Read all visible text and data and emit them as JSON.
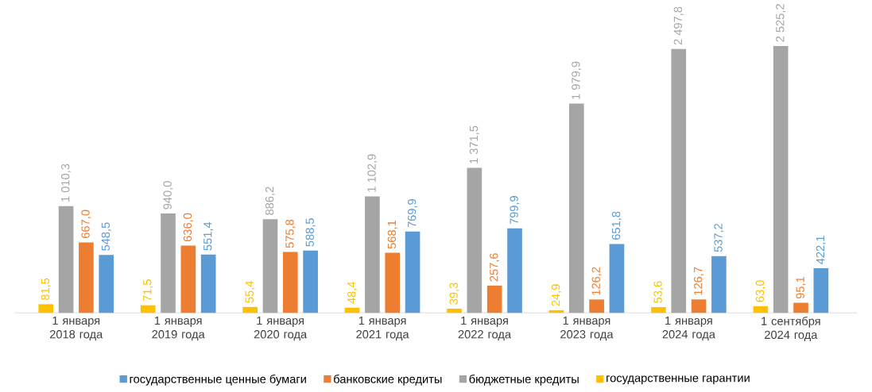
{
  "chart_data": {
    "type": "bar",
    "categories": [
      "1 января 2018 года",
      "1 января 2019 года",
      "1 января 2020 года",
      "1 января 2021 года",
      "1 января 2022 года",
      "1 января 2023 года",
      "1 января 2024 года",
      "1 сентября 2024 года"
    ],
    "series": [
      {
        "name": "государственные гарантии",
        "color": "#ffc000",
        "values": [
          81.5,
          71.5,
          55.4,
          48.4,
          39.3,
          24.9,
          53.6,
          63.0
        ],
        "value_labels": [
          "81,5",
          "71,5",
          "55,4",
          "48,4",
          "39,3",
          "24,9",
          "53,6",
          "63,0"
        ]
      },
      {
        "name": "бюджетные кредиты",
        "color": "#a5a5a5",
        "values": [
          1010.3,
          940.0,
          886.2,
          1102.9,
          1371.5,
          1979.9,
          2497.8,
          2525.2
        ],
        "value_labels": [
          "1 010,3",
          "940,0",
          "886,2",
          "1 102,9",
          "1 371,5",
          "1 979,9",
          "2 497,8",
          "2 525,2"
        ]
      },
      {
        "name": "банковские кредиты",
        "color": "#ed7d31",
        "values": [
          667.0,
          636.0,
          575.8,
          568.1,
          257.6,
          126.2,
          126.7,
          95.1
        ],
        "value_labels": [
          "667,0",
          "636,0",
          "575,8",
          "568,1",
          "257,6",
          "126,2",
          "126,7",
          "95,1"
        ]
      },
      {
        "name": "государственные ценные бумаги",
        "color": "#5b9bd5",
        "values": [
          548.5,
          551.4,
          588.5,
          769.9,
          799.9,
          651.8,
          537.2,
          422.1
        ],
        "value_labels": [
          "548,5",
          "551,4",
          "588,5",
          "769,9",
          "799,9",
          "651,8",
          "537,2",
          "422,1"
        ]
      }
    ],
    "legend": "bottom"
  }
}
